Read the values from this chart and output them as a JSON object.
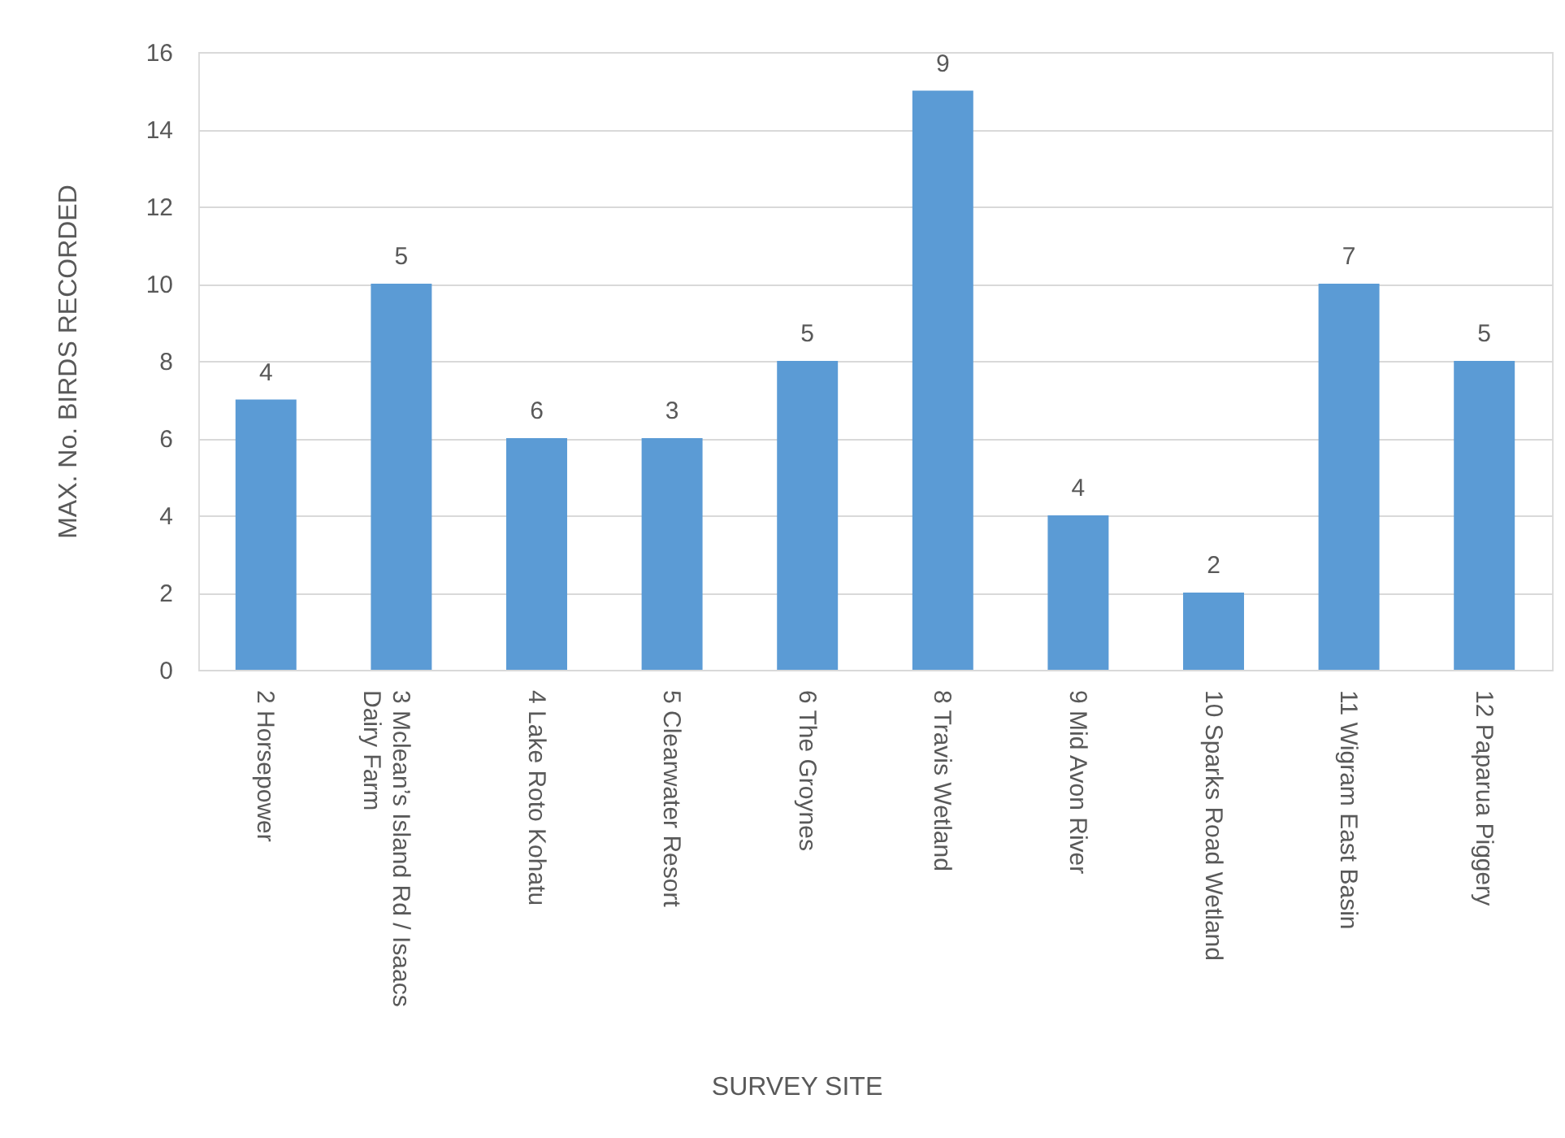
{
  "chart_data": {
    "type": "bar",
    "xlabel": "SURVEY  SITE",
    "ylabel": "MAX. No. BIRDS RECORDED",
    "categories": [
      "2 Horsepower",
      "3  Mclean’s Island Rd / Isaacs\nDairy Farm",
      "4 Lake Roto Kohatu",
      "5 Clearwater Resort",
      "6 The Groynes",
      "8 Travis Wetland",
      "9 Mid Avon River",
      "10  Sparks Road Wetland",
      "11  Wigram East Basin",
      "12  Paparua Piggery"
    ],
    "values": [
      7,
      10,
      6,
      6,
      8,
      15,
      4,
      2,
      10,
      8
    ],
    "color": "#5b9bd5",
    "ylim": [
      0,
      16
    ],
    "yticks": [
      0,
      2,
      4,
      6,
      8,
      10,
      12,
      14,
      16
    ],
    "grid": "y",
    "annotations": [
      {
        "text": "4",
        "x": "2 Horsepower",
        "y": 7
      },
      {
        "text": "5",
        "x": "3  Mclean’s Island Rd / Isaacs\nDairy Farm",
        "y": 10
      },
      {
        "text": "6",
        "x": "4 Lake Roto Kohatu",
        "y": 6
      },
      {
        "text": "3",
        "x": "5 Clearwater Resort",
        "y": 6
      },
      {
        "text": "5",
        "x": "6 The Groynes",
        "y": 8
      },
      {
        "text": "9",
        "x": "8 Travis Wetland",
        "y": 15
      },
      {
        "text": "4",
        "x": "9 Mid Avon River",
        "y": 4
      },
      {
        "text": "2",
        "x": "10  Sparks Road Wetland",
        "y": 2
      },
      {
        "text": "7",
        "x": "11  Wigram East Basin",
        "y": 10
      },
      {
        "text": "5",
        "x": "12  Paparua Piggery",
        "y": 8
      }
    ]
  }
}
